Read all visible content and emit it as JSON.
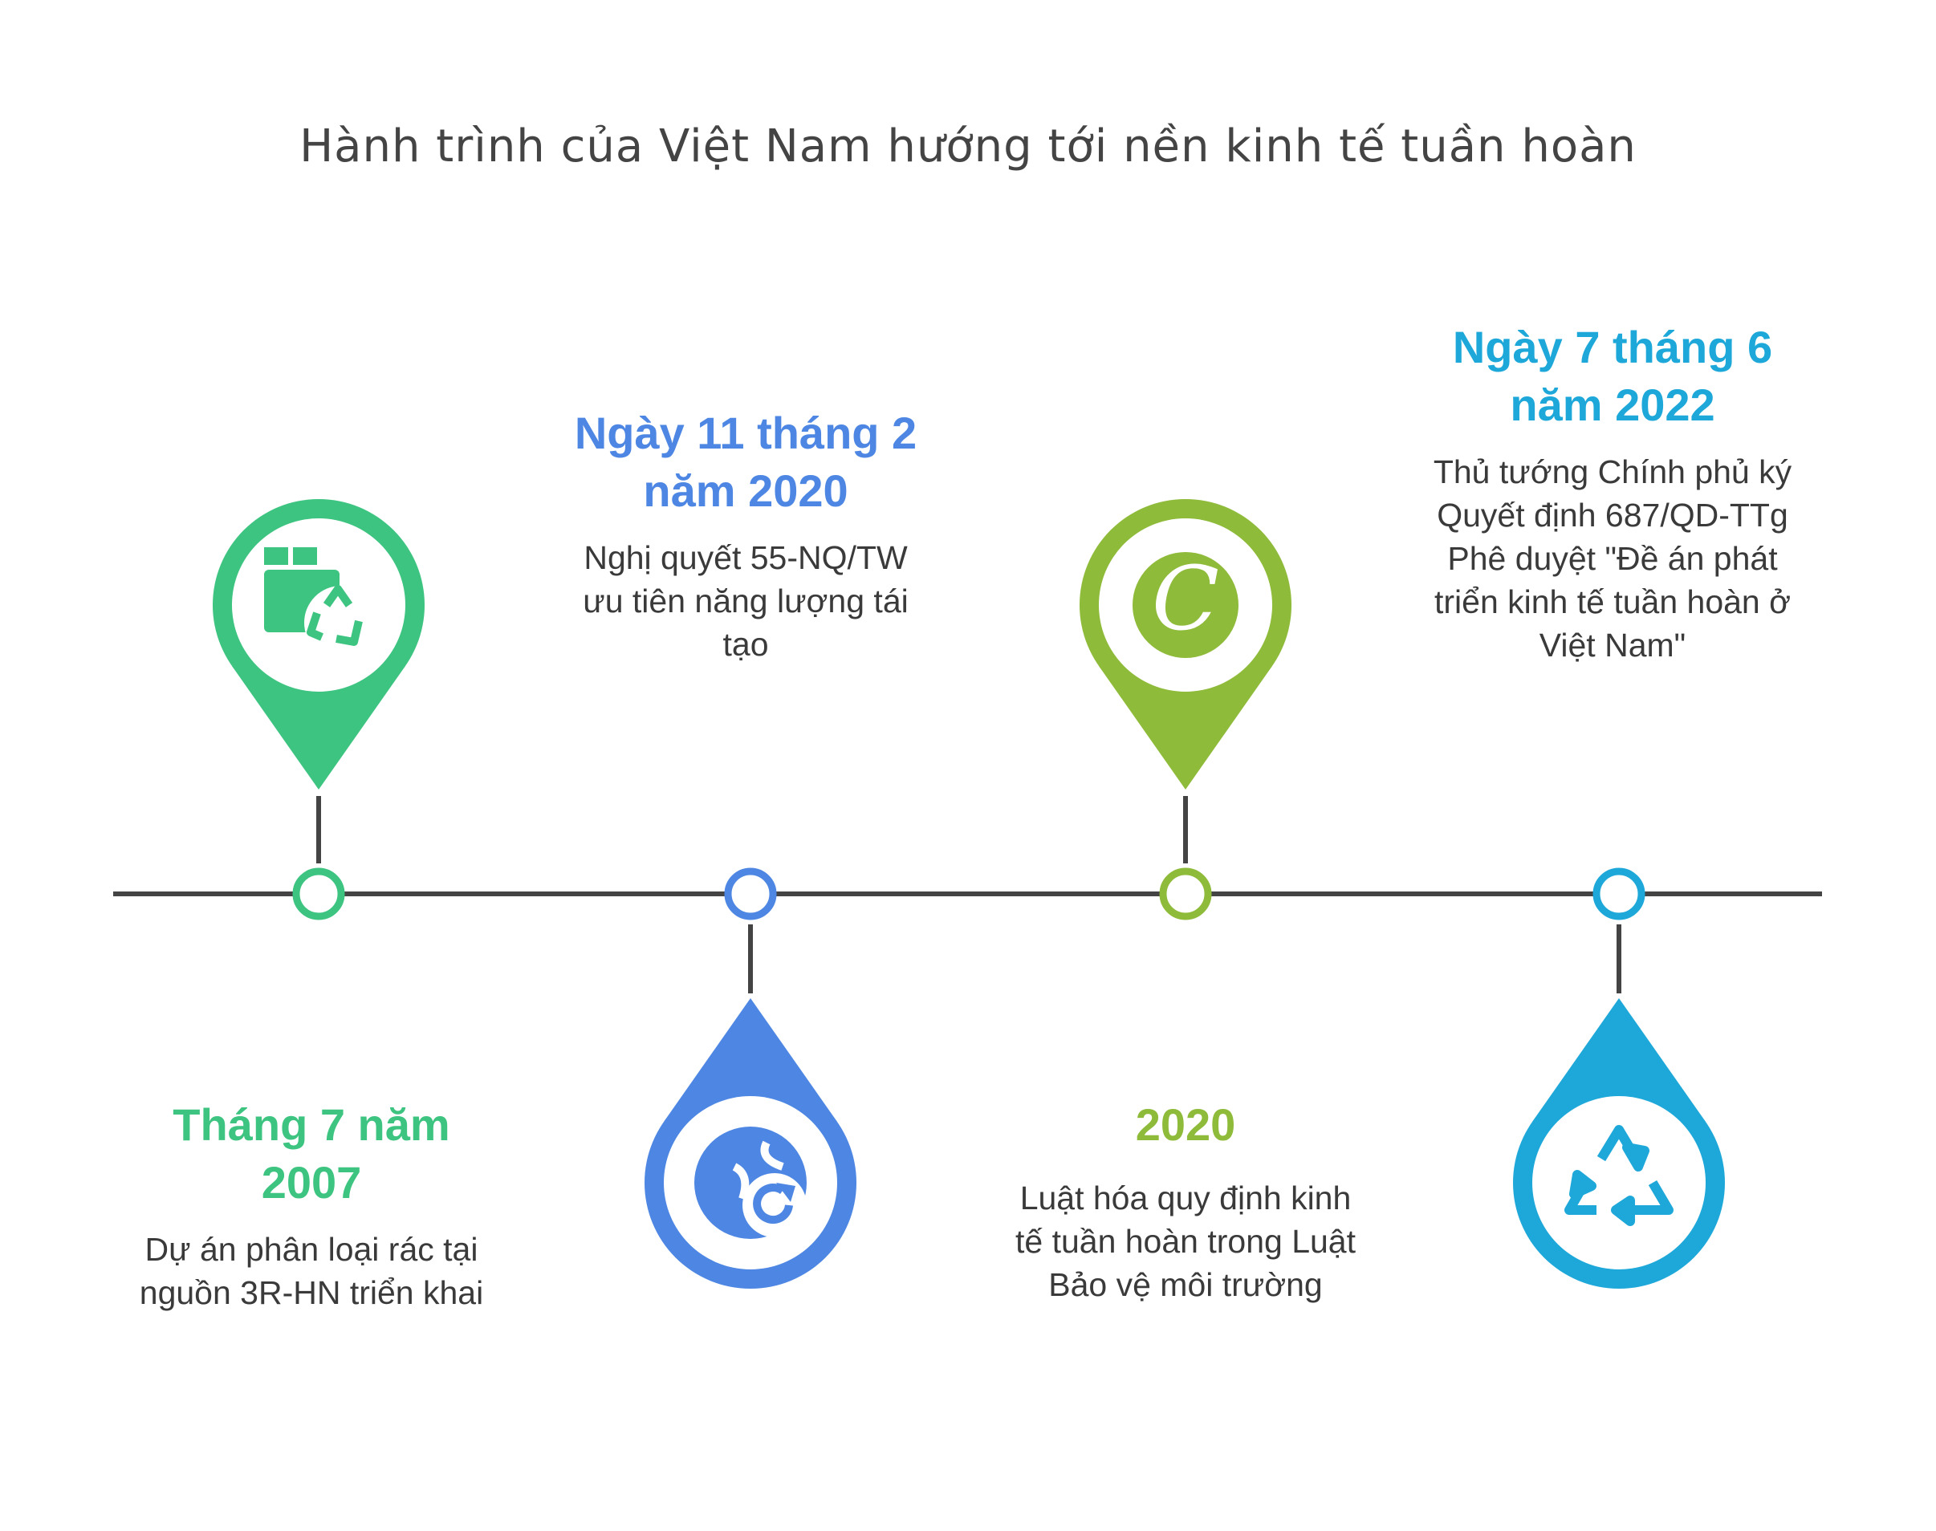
{
  "title": "Hành trình của Việt Nam hướng tới nền kinh tế tuần hoàn",
  "colors": {
    "green": "#3EC481",
    "blue": "#4E87E3",
    "lime": "#8FBB3A",
    "cyan": "#1EA8D9",
    "line": "#444444"
  },
  "events": [
    {
      "heading_1": "Tháng 7 năm",
      "heading_2": "2007",
      "body": [
        "Dự án phân loại rác tại",
        "nguồn 3R-HN triển khai"
      ],
      "icon": "box-recycle-icon",
      "color": "#3EC481"
    },
    {
      "heading_1": "Ngày 11 tháng 2",
      "heading_2": "năm 2020",
      "body": [
        "Nghị quyết 55-NQ/TW",
        "ưu tiên năng lượng tái",
        "tạo"
      ],
      "icon": "globe-refresh-icon",
      "color": "#4E87E3"
    },
    {
      "heading_1": "2020",
      "heading_2": "",
      "body": [
        "Luật hóa quy định kinh",
        "tế tuần hoàn trong Luật",
        "Bảo vệ môi trường"
      ],
      "icon": "letter-c-icon",
      "color": "#8FBB3A"
    },
    {
      "heading_1": "Ngày 7 tháng 6",
      "heading_2": "năm 2022",
      "body": [
        "Thủ tướng Chính phủ ký",
        "Quyết định 687/QD-TTg",
        "Phê duyệt \"Đề án phát",
        "triển kinh tế tuần hoàn ở",
        "Việt Nam\""
      ],
      "icon": "recycle-icon",
      "color": "#1EA8D9"
    }
  ]
}
